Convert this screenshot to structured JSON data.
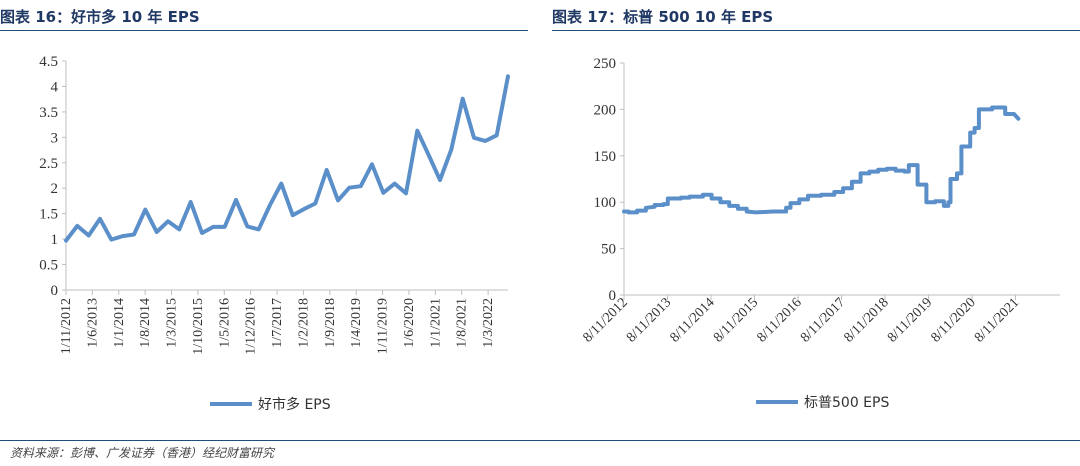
{
  "left_title": "图表 16：好市多 10 年 EPS",
  "right_title": "图表 17：标普 500 10 年 EPS",
  "footer": "资料来源：彭博、广发证券（香港）经纪财富研究",
  "colors": {
    "line": "#5b8fc9",
    "axis": "#bfbfbf",
    "title": "#1f3864"
  },
  "chart_data": [
    {
      "type": "line",
      "title": "好市多 10 年 EPS",
      "legend": "好市多 EPS",
      "legend_position": "bottom",
      "ylim": [
        0,
        4.5
      ],
      "y_ticks": [
        "0",
        "0.5",
        "1",
        "1.5",
        "2",
        "2.5",
        "3",
        "3.5",
        "4",
        "4.5"
      ],
      "x_tick_labels": [
        "1/11/2012",
        "1/6/2013",
        "1/1/2014",
        "1/8/2014",
        "1/3/2015",
        "1/10/2015",
        "1/5/2016",
        "1/12/2016",
        "1/7/2017",
        "1/2/2018",
        "1/9/2018",
        "1/4/2019",
        "1/11/2019",
        "1/6/2020",
        "1/1/2021",
        "1/8/2021",
        "1/3/2022"
      ],
      "values": [
        0.97,
        1.26,
        1.07,
        1.4,
        0.99,
        1.06,
        1.09,
        1.58,
        1.14,
        1.35,
        1.19,
        1.73,
        1.12,
        1.24,
        1.24,
        1.77,
        1.25,
        1.19,
        1.67,
        2.09,
        1.47,
        1.59,
        1.7,
        2.36,
        1.76,
        2.01,
        2.04,
        2.47,
        1.91,
        2.09,
        1.9,
        3.13,
        2.65,
        2.16,
        2.76,
        3.76,
        2.99,
        2.93,
        3.04,
        4.2
      ]
    },
    {
      "type": "line",
      "title": "标普 500 10 年 EPS",
      "legend": "标普500 EPS",
      "legend_position": "bottom",
      "ylim": [
        0,
        250
      ],
      "y_ticks": [
        "0",
        "50",
        "100",
        "150",
        "200",
        "250"
      ],
      "x_tick_labels": [
        "8/11/2012",
        "8/11/2013",
        "8/11/2014",
        "8/11/2015",
        "8/11/2016",
        "8/11/2017",
        "8/11/2018",
        "8/11/2019",
        "8/11/2020",
        "8/11/2021"
      ],
      "x_start": 2012.6,
      "x_end": 2022.55,
      "points": [
        [
          2012.6,
          90
        ],
        [
          2012.7,
          90
        ],
        [
          2012.7,
          89
        ],
        [
          2012.9,
          89
        ],
        [
          2012.9,
          91
        ],
        [
          2013.1,
          91
        ],
        [
          2013.1,
          94
        ],
        [
          2013.3,
          95
        ],
        [
          2013.3,
          97
        ],
        [
          2013.5,
          97
        ],
        [
          2013.5,
          98
        ],
        [
          2013.6,
          98
        ],
        [
          2013.6,
          104
        ],
        [
          2013.9,
          104
        ],
        [
          2013.9,
          105
        ],
        [
          2014.1,
          105
        ],
        [
          2014.1,
          106
        ],
        [
          2014.4,
          106
        ],
        [
          2014.4,
          108
        ],
        [
          2014.6,
          108
        ],
        [
          2014.6,
          104
        ],
        [
          2014.8,
          104
        ],
        [
          2014.8,
          100
        ],
        [
          2015.0,
          100
        ],
        [
          2015.0,
          96
        ],
        [
          2015.2,
          96
        ],
        [
          2015.2,
          93
        ],
        [
          2015.4,
          93
        ],
        [
          2015.4,
          90
        ],
        [
          2015.6,
          89
        ],
        [
          2016.0,
          90
        ],
        [
          2016.0,
          90
        ],
        [
          2016.3,
          90
        ],
        [
          2016.3,
          94
        ],
        [
          2016.4,
          94
        ],
        [
          2016.4,
          99
        ],
        [
          2016.6,
          99
        ],
        [
          2016.6,
          103
        ],
        [
          2016.8,
          103
        ],
        [
          2016.8,
          107
        ],
        [
          2017.1,
          107
        ],
        [
          2017.1,
          108
        ],
        [
          2017.4,
          108
        ],
        [
          2017.4,
          111
        ],
        [
          2017.6,
          111
        ],
        [
          2017.6,
          115
        ],
        [
          2017.8,
          115
        ],
        [
          2017.8,
          122
        ],
        [
          2018.0,
          122
        ],
        [
          2018.0,
          131
        ],
        [
          2018.2,
          131
        ],
        [
          2018.2,
          133
        ],
        [
          2018.4,
          133
        ],
        [
          2018.4,
          135
        ],
        [
          2018.6,
          135
        ],
        [
          2018.6,
          136
        ],
        [
          2018.8,
          136
        ],
        [
          2018.8,
          134
        ],
        [
          2019.0,
          134
        ],
        [
          2019.0,
          133
        ],
        [
          2019.1,
          133
        ],
        [
          2019.1,
          140
        ],
        [
          2019.3,
          140
        ],
        [
          2019.3,
          119
        ],
        [
          2019.5,
          119
        ],
        [
          2019.5,
          100
        ],
        [
          2019.7,
          100
        ],
        [
          2019.7,
          101
        ],
        [
          2019.9,
          101
        ],
        [
          2019.9,
          96
        ],
        [
          2020.0,
          96
        ],
        [
          2020.0,
          100
        ],
        [
          2020.05,
          100
        ],
        [
          2020.05,
          125
        ],
        [
          2020.2,
          125
        ],
        [
          2020.2,
          131
        ],
        [
          2020.3,
          131
        ],
        [
          2020.3,
          160
        ],
        [
          2020.5,
          160
        ],
        [
          2020.5,
          175
        ],
        [
          2020.6,
          175
        ],
        [
          2020.6,
          180
        ],
        [
          2020.7,
          180
        ],
        [
          2020.7,
          200
        ],
        [
          2021.0,
          200
        ],
        [
          2021.0,
          202
        ],
        [
          2021.3,
          202
        ],
        [
          2021.3,
          195
        ],
        [
          2021.5,
          195
        ],
        [
          2021.6,
          190
        ]
      ]
    }
  ]
}
